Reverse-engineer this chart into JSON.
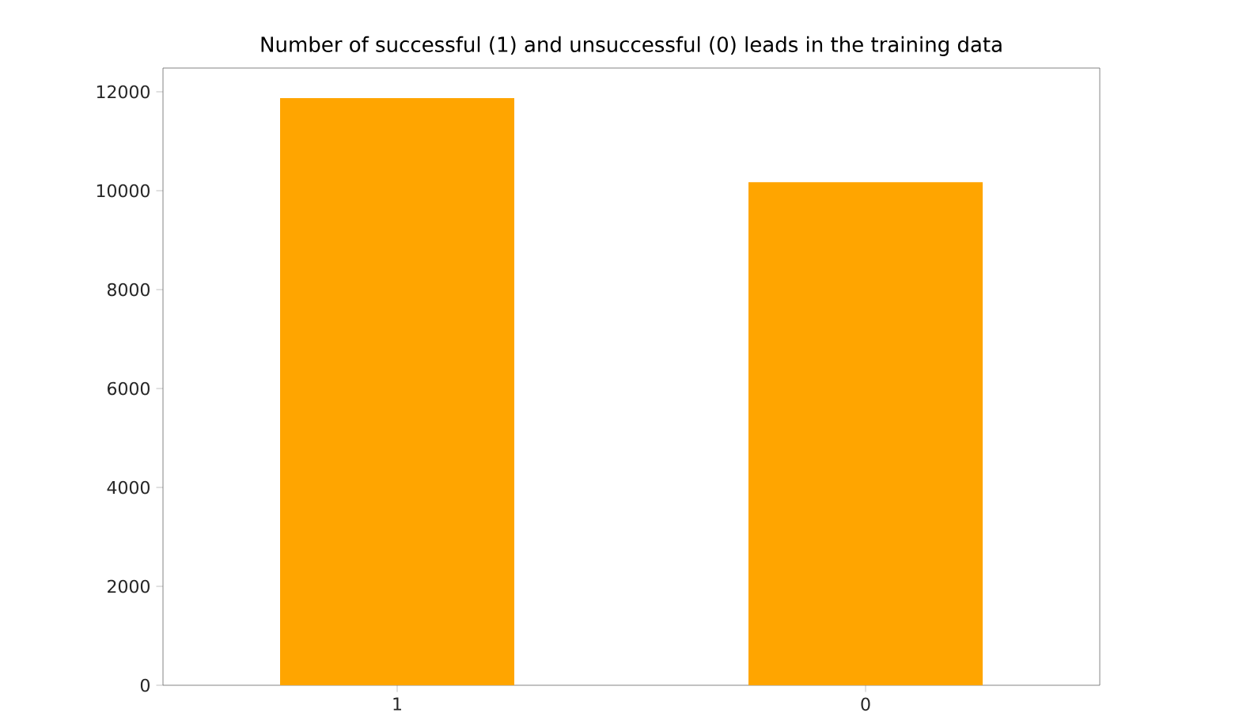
{
  "chart_data": {
    "type": "bar",
    "title": "Number of successful (1) and unsuccessful (0) leads in the training data",
    "categories": [
      "1",
      "0"
    ],
    "values": [
      11870,
      10170
    ],
    "color": "#ffa500",
    "ylim": [
      0,
      12480
    ],
    "yticks": [
      0,
      2000,
      4000,
      6000,
      8000,
      10000,
      12000
    ],
    "grid": false
  }
}
